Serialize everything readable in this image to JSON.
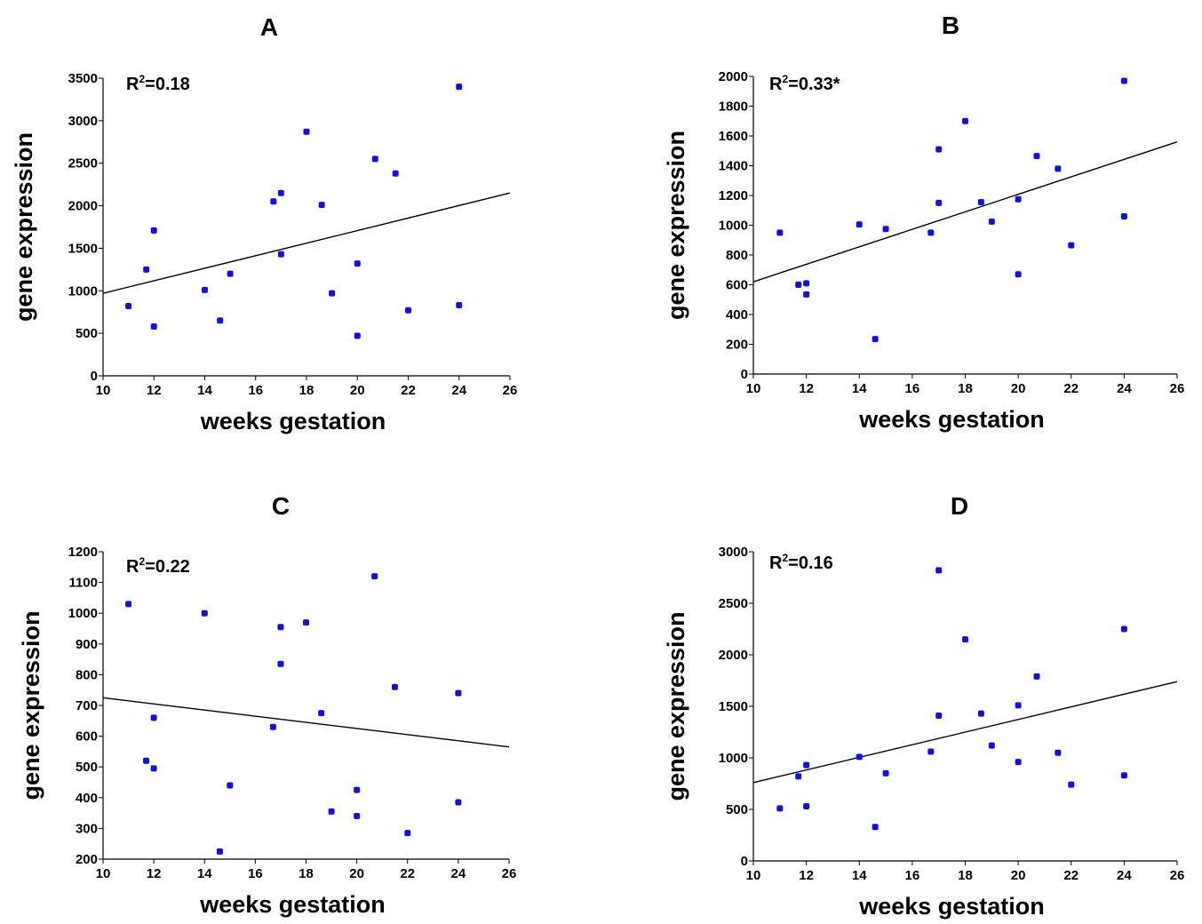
{
  "chart_data": [
    {
      "panel": "A",
      "type": "scatter",
      "r2_text": "R",
      "r2_sup": "2",
      "r2_value": "=0.18",
      "xlabel": "weeks gestation",
      "ylabel": "gene expression",
      "xlim": [
        10,
        26
      ],
      "ylim": [
        0,
        3500
      ],
      "xticks": [
        10,
        12,
        14,
        16,
        18,
        20,
        22,
        24,
        26
      ],
      "yticks": [
        0,
        500,
        1000,
        1500,
        2000,
        2500,
        3000,
        3500
      ],
      "points": [
        {
          "x": 11,
          "y": 820
        },
        {
          "x": 11.7,
          "y": 1250
        },
        {
          "x": 12,
          "y": 1710
        },
        {
          "x": 12,
          "y": 580
        },
        {
          "x": 14,
          "y": 1010
        },
        {
          "x": 14.6,
          "y": 650
        },
        {
          "x": 15,
          "y": 1200
        },
        {
          "x": 16.7,
          "y": 2050
        },
        {
          "x": 17,
          "y": 2150
        },
        {
          "x": 17,
          "y": 1430
        },
        {
          "x": 18,
          "y": 2870
        },
        {
          "x": 18.6,
          "y": 2010
        },
        {
          "x": 19,
          "y": 970
        },
        {
          "x": 20,
          "y": 1320
        },
        {
          "x": 20,
          "y": 470
        },
        {
          "x": 20.7,
          "y": 2550
        },
        {
          "x": 21.5,
          "y": 2380
        },
        {
          "x": 22,
          "y": 770
        },
        {
          "x": 24,
          "y": 3400
        },
        {
          "x": 24,
          "y": 830
        }
      ],
      "fit": [
        [
          10,
          970
        ],
        [
          26,
          2150
        ]
      ],
      "point_color": "#1010e0"
    },
    {
      "panel": "B",
      "type": "scatter",
      "r2_text": "R",
      "r2_sup": "2",
      "r2_value": "=0.33*",
      "xlabel": "weeks gestation",
      "ylabel": "gene expression",
      "xlim": [
        10,
        26
      ],
      "ylim": [
        0,
        2000
      ],
      "xticks": [
        10,
        12,
        14,
        16,
        18,
        20,
        22,
        24,
        26
      ],
      "yticks": [
        0,
        200,
        400,
        600,
        800,
        1000,
        1200,
        1400,
        1600,
        1800,
        2000
      ],
      "points": [
        {
          "x": 11,
          "y": 950
        },
        {
          "x": 11.7,
          "y": 600
        },
        {
          "x": 12,
          "y": 610
        },
        {
          "x": 12,
          "y": 535
        },
        {
          "x": 14,
          "y": 1005
        },
        {
          "x": 14.6,
          "y": 235
        },
        {
          "x": 15,
          "y": 975
        },
        {
          "x": 16.7,
          "y": 950
        },
        {
          "x": 17,
          "y": 1510
        },
        {
          "x": 17,
          "y": 1150
        },
        {
          "x": 18,
          "y": 1700
        },
        {
          "x": 18.6,
          "y": 1155
        },
        {
          "x": 19,
          "y": 1025
        },
        {
          "x": 20,
          "y": 1175
        },
        {
          "x": 20,
          "y": 670
        },
        {
          "x": 20.7,
          "y": 1465
        },
        {
          "x": 21.5,
          "y": 1380
        },
        {
          "x": 22,
          "y": 865
        },
        {
          "x": 24,
          "y": 1970
        },
        {
          "x": 24,
          "y": 1060
        }
      ],
      "fit": [
        [
          10,
          620
        ],
        [
          26,
          1560
        ]
      ],
      "point_color": "#1010e0"
    },
    {
      "panel": "C",
      "type": "scatter",
      "r2_text": "R",
      "r2_sup": "2",
      "r2_value": "=0.22",
      "xlabel": "weeks gestation",
      "ylabel": "gene expression",
      "xlim": [
        10,
        26
      ],
      "ylim": [
        200,
        1200
      ],
      "xticks": [
        10,
        12,
        14,
        16,
        18,
        20,
        22,
        24,
        26
      ],
      "yticks": [
        200,
        300,
        400,
        500,
        600,
        700,
        800,
        900,
        1000,
        1100,
        1200
      ],
      "points": [
        {
          "x": 11,
          "y": 1030
        },
        {
          "x": 11.7,
          "y": 520
        },
        {
          "x": 12,
          "y": 660
        },
        {
          "x": 12,
          "y": 495
        },
        {
          "x": 14,
          "y": 1000
        },
        {
          "x": 14.6,
          "y": 225
        },
        {
          "x": 15,
          "y": 440
        },
        {
          "x": 16.7,
          "y": 630
        },
        {
          "x": 17,
          "y": 955
        },
        {
          "x": 17,
          "y": 835
        },
        {
          "x": 18,
          "y": 970
        },
        {
          "x": 18.6,
          "y": 675
        },
        {
          "x": 19,
          "y": 355
        },
        {
          "x": 20,
          "y": 425
        },
        {
          "x": 20,
          "y": 340
        },
        {
          "x": 20.7,
          "y": 1120
        },
        {
          "x": 21.5,
          "y": 760
        },
        {
          "x": 22,
          "y": 285
        },
        {
          "x": 24,
          "y": 740
        },
        {
          "x": 24,
          "y": 385
        }
      ],
      "fit": [
        [
          10,
          725
        ],
        [
          26,
          565
        ]
      ],
      "point_color": "#1010e0"
    },
    {
      "panel": "D",
      "type": "scatter",
      "r2_text": "R",
      "r2_sup": "2",
      "r2_value": "=0.16",
      "xlabel": "weeks gestation",
      "ylabel": "gene expression",
      "xlim": [
        10,
        26
      ],
      "ylim": [
        0,
        3000
      ],
      "xticks": [
        10,
        12,
        14,
        16,
        18,
        20,
        22,
        24,
        26
      ],
      "yticks": [
        0,
        500,
        1000,
        1500,
        2000,
        2500,
        3000
      ],
      "points": [
        {
          "x": 11,
          "y": 510
        },
        {
          "x": 11.7,
          "y": 820
        },
        {
          "x": 12,
          "y": 930
        },
        {
          "x": 12,
          "y": 530
        },
        {
          "x": 14,
          "y": 1010
        },
        {
          "x": 14.6,
          "y": 330
        },
        {
          "x": 15,
          "y": 850
        },
        {
          "x": 16.7,
          "y": 1060
        },
        {
          "x": 17,
          "y": 2820
        },
        {
          "x": 17,
          "y": 1410
        },
        {
          "x": 18,
          "y": 2150
        },
        {
          "x": 18.6,
          "y": 1430
        },
        {
          "x": 19,
          "y": 1120
        },
        {
          "x": 20,
          "y": 1510
        },
        {
          "x": 20,
          "y": 960
        },
        {
          "x": 20.7,
          "y": 1790
        },
        {
          "x": 21.5,
          "y": 1050
        },
        {
          "x": 22,
          "y": 740
        },
        {
          "x": 24,
          "y": 2250
        },
        {
          "x": 24,
          "y": 830
        }
      ],
      "fit": [
        [
          10,
          760
        ],
        [
          26,
          1740
        ]
      ],
      "point_color": "#1010e0"
    }
  ]
}
